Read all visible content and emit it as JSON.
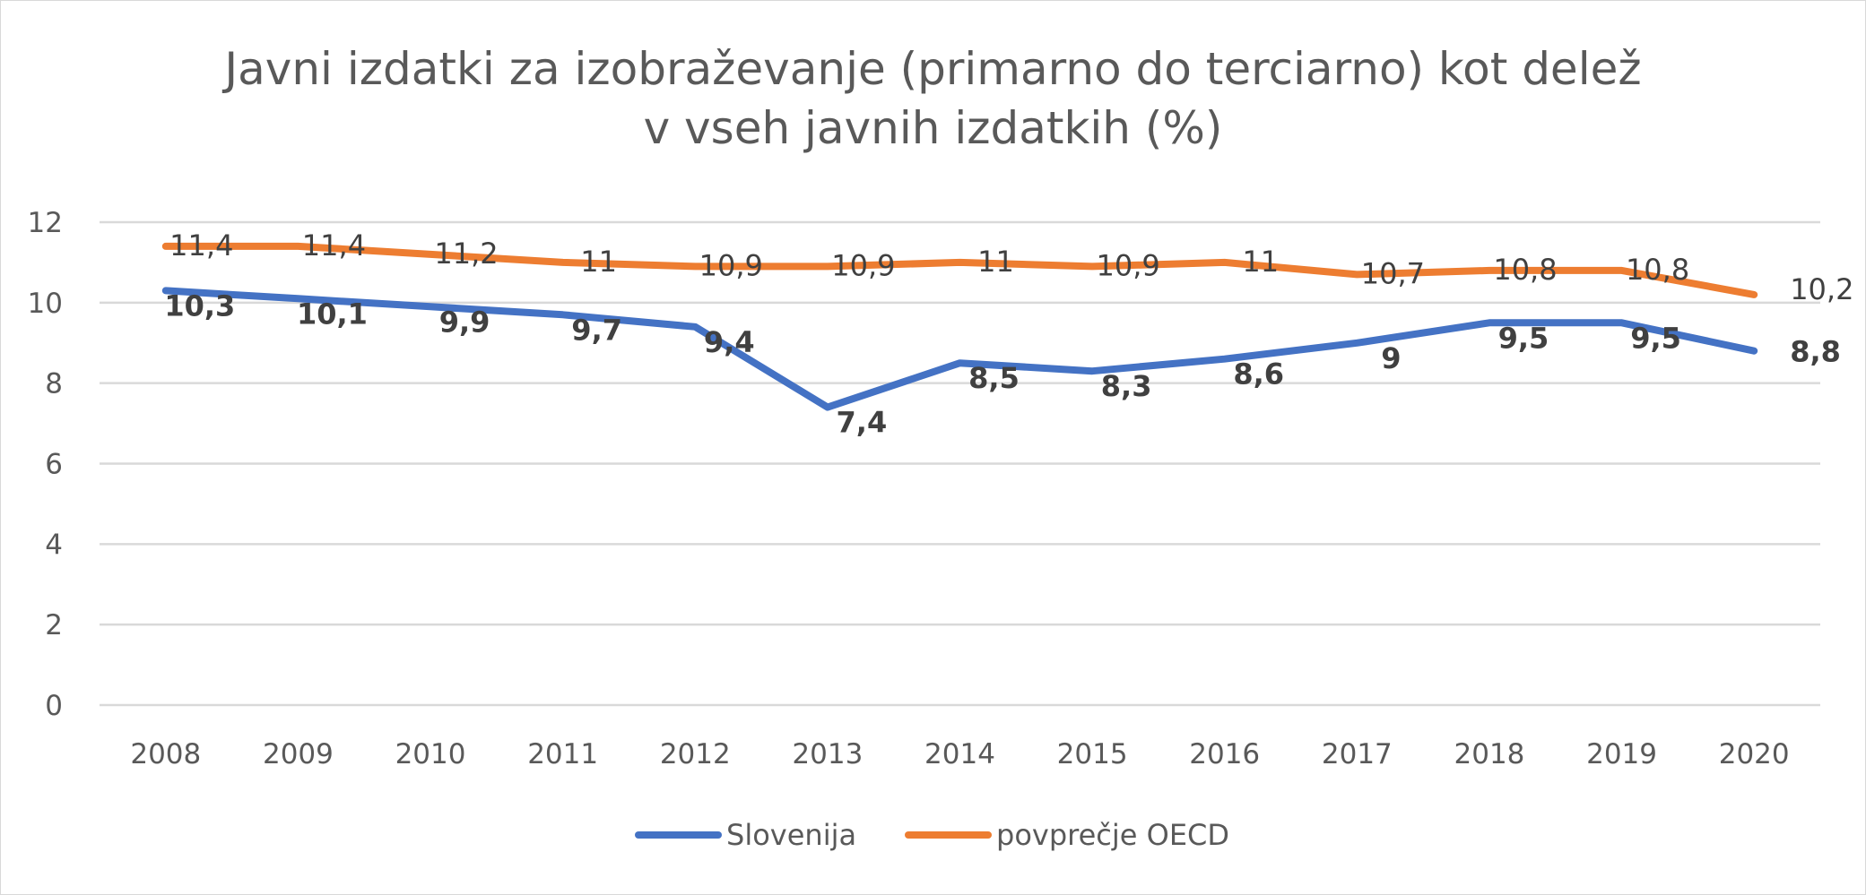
{
  "chart_data": {
    "type": "line",
    "title": "Javni izdatki za izobraževanje (primarno do terciarno) kot delež v vseh javnih izdatkih (%)",
    "title_lines": [
      "Javni izdatki za izobraževanje (primarno do terciarno) kot delež",
      "v vseh javnih izdatkih (%)"
    ],
    "xlabel": "",
    "ylabel": "",
    "categories": [
      "2008",
      "2009",
      "2010",
      "2011",
      "2012",
      "2013",
      "2014",
      "2015",
      "2016",
      "2017",
      "2018",
      "2019",
      "2020"
    ],
    "ylim": [
      0,
      12
    ],
    "yticks": [
      0,
      2,
      4,
      6,
      8,
      10,
      12
    ],
    "grid": true,
    "legend_position": "bottom",
    "series": [
      {
        "name": "Slovenija",
        "color": "#4472C4",
        "values": [
          10.3,
          10.1,
          9.9,
          9.7,
          9.4,
          7.4,
          8.5,
          8.3,
          8.6,
          9,
          9.5,
          9.5,
          8.8
        ],
        "labels": [
          "10,3",
          "10,1",
          "9,9",
          "9,7",
          "9,4",
          "7,4",
          "8,5",
          "8,3",
          "8,6",
          "9",
          "9,5",
          "9,5",
          "8,8"
        ]
      },
      {
        "name": "povprečje OECD",
        "color": "#ED7D31",
        "values": [
          11.4,
          11.4,
          11.2,
          11,
          10.9,
          10.9,
          11,
          10.9,
          11,
          10.7,
          10.8,
          10.8,
          10.2
        ],
        "labels": [
          "11,4",
          "11,4",
          "11,2",
          "11",
          "10,9",
          "10,9",
          "11",
          "10,9",
          "11",
          "10,7",
          "10,8",
          "10,8",
          "10,2"
        ]
      }
    ]
  }
}
